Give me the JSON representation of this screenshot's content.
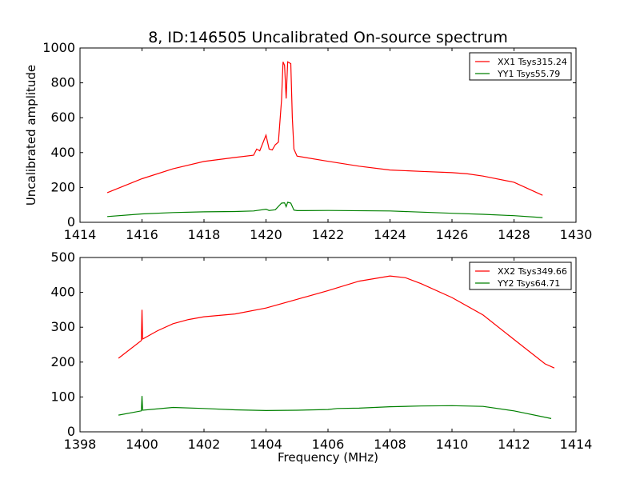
{
  "chart_data": [
    {
      "type": "line",
      "title": "8, ID:146505 Uncalibrated On-source spectrum",
      "xlabel": "",
      "ylabel": "Uncalibrated amplitude",
      "xlim": [
        1414,
        1430
      ],
      "ylim": [
        0,
        1000
      ],
      "xticks": [
        "1414",
        "1416",
        "1418",
        "1420",
        "1422",
        "1424",
        "1426",
        "1428",
        "1430"
      ],
      "yticks": [
        "0",
        "200",
        "400",
        "600",
        "800",
        "1000"
      ],
      "legend_position": "top-right",
      "series": [
        {
          "name": "XX1 Tsys315.24",
          "color": "#ff0000",
          "x": [
            1414.88,
            1416,
            1417,
            1418,
            1419,
            1419.6,
            1419.7,
            1419.8,
            1420,
            1420.1,
            1420.2,
            1420.3,
            1420.4,
            1420.5,
            1420.55,
            1420.6,
            1420.65,
            1420.7,
            1420.8,
            1420.85,
            1420.9,
            1421,
            1422,
            1423,
            1424,
            1425,
            1426,
            1426.5,
            1427,
            1428,
            1428.92
          ],
          "y": [
            170,
            250,
            307,
            349,
            372,
            385,
            420,
            410,
            500,
            420,
            415,
            445,
            460,
            700,
            920,
            900,
            710,
            920,
            910,
            600,
            420,
            380,
            350,
            322,
            300,
            292,
            285,
            278,
            265,
            230,
            155
          ]
        },
        {
          "name": "YY1 Tsys55.79",
          "color": "#008000",
          "x": [
            1414.88,
            1416,
            1417,
            1418,
            1419,
            1419.6,
            1420,
            1420.1,
            1420.3,
            1420.5,
            1420.6,
            1420.65,
            1420.7,
            1420.8,
            1420.9,
            1421,
            1422,
            1424,
            1426,
            1427,
            1428,
            1428.92
          ],
          "y": [
            33,
            48,
            56,
            60,
            62,
            65,
            75,
            68,
            72,
            110,
            112,
            90,
            115,
            110,
            70,
            67,
            68,
            65,
            52,
            46,
            38,
            27
          ]
        }
      ]
    },
    {
      "type": "line",
      "title": "",
      "xlabel": "Frequency (MHz)",
      "ylabel": "",
      "xlim": [
        1398,
        1414
      ],
      "ylim": [
        0,
        500
      ],
      "xticks": [
        "1398",
        "1400",
        "1402",
        "1404",
        "1406",
        "1408",
        "1410",
        "1412",
        "1414"
      ],
      "yticks": [
        "0",
        "100",
        "200",
        "300",
        "400",
        "500"
      ],
      "legend_position": "top-right",
      "series": [
        {
          "name": "XX2 Tsys349.66",
          "color": "#ff0000",
          "x": [
            1399.24,
            1399.98,
            1400,
            1400.02,
            1400.5,
            1401,
            1401.5,
            1402,
            1403,
            1404,
            1405,
            1406,
            1407,
            1408,
            1408.5,
            1409,
            1410,
            1411,
            1412,
            1413,
            1413.3
          ],
          "y": [
            211,
            262,
            350,
            266,
            290,
            310,
            322,
            330,
            338,
            355,
            380,
            405,
            432,
            447,
            442,
            425,
            385,
            335,
            265,
            195,
            183
          ]
        },
        {
          "name": "YY2 Tsys64.71",
          "color": "#008000",
          "x": [
            1399.24,
            1399.98,
            1400,
            1400.02,
            1401,
            1402,
            1403,
            1404,
            1405,
            1406,
            1406.3,
            1407,
            1408,
            1409,
            1410,
            1411,
            1412,
            1413.2
          ],
          "y": [
            48,
            60,
            103,
            62,
            70,
            67,
            63,
            61,
            62,
            64,
            67,
            68,
            72,
            74,
            75,
            73,
            60,
            38
          ]
        }
      ]
    }
  ]
}
